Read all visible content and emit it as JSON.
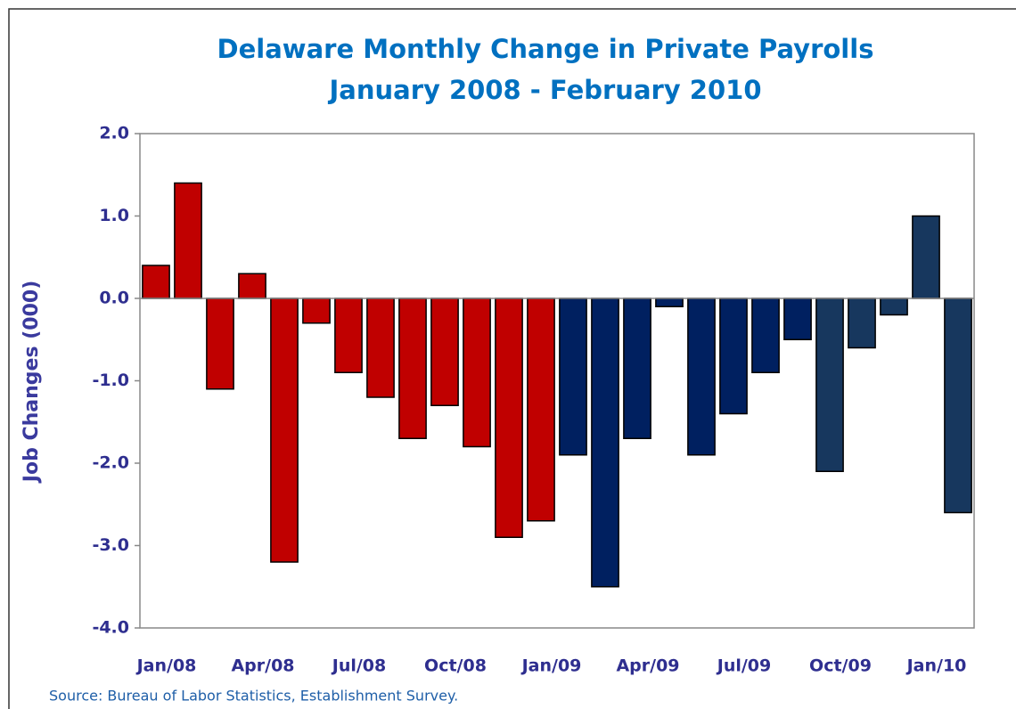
{
  "chart_data": {
    "type": "bar",
    "title": "Delaware Monthly Change in Private Payrolls",
    "subtitle": "January 2008 - February 2010",
    "y_label": "Job Changes (000)",
    "source": "Source: Bureau of Labor Statistics, Establishment Survey.",
    "categories": [
      "Jan/08",
      null,
      null,
      "Apr/08",
      null,
      null,
      "Jul/08",
      null,
      null,
      "Oct/08",
      null,
      null,
      "Jan/09",
      null,
      null,
      "Apr/09",
      null,
      null,
      "Jul/09",
      null,
      null,
      "Oct/09",
      null,
      null,
      "Jan/10",
      null
    ],
    "values": [
      0.4,
      1.4,
      -1.1,
      0.3,
      -3.2,
      -0.3,
      -0.9,
      -1.2,
      -1.7,
      -1.3,
      -1.8,
      -2.9,
      -2.7,
      -1.9,
      -3.5,
      -1.7,
      -0.1,
      -1.9,
      -1.4,
      -0.9,
      -0.5,
      -2.1,
      -0.6,
      -0.2,
      1.0,
      -2.6
    ],
    "colors": [
      "#c00000",
      "#c00000",
      "#c00000",
      "#c00000",
      "#c00000",
      "#c00000",
      "#c00000",
      "#c00000",
      "#c00000",
      "#c00000",
      "#c00000",
      "#c00000",
      "#c00000",
      "#002060",
      "#002060",
      "#002060",
      "#002060",
      "#002060",
      "#002060",
      "#002060",
      "#002060",
      "#17375e",
      "#17375e",
      "#17375e",
      "#17375e",
      "#17375e"
    ],
    "ylim": [
      -4,
      2
    ],
    "yticks": [
      {
        "value": -4,
        "label": "-4.0"
      },
      {
        "value": -3,
        "label": "-3.0"
      },
      {
        "value": -2,
        "label": "-2.0"
      },
      {
        "value": -1,
        "label": "-1.0"
      },
      {
        "value": 0,
        "label": "0.0"
      },
      {
        "value": 1,
        "label": "1.0"
      },
      {
        "value": 2,
        "label": "2.0"
      }
    ],
    "grid": false
  }
}
